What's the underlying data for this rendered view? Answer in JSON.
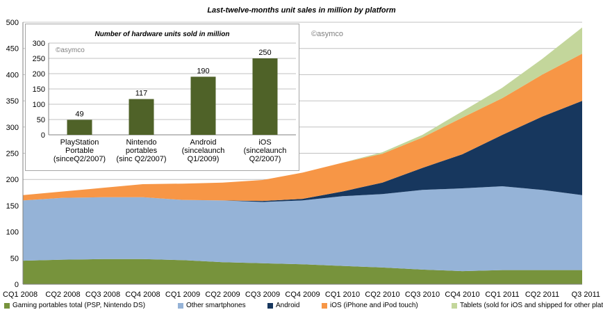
{
  "title": "Last-twelve-months unit sales in million by platform",
  "watermark": "©asymco",
  "colors": {
    "Gaming portables total (PSP, Nintendo DS)": "#77933c",
    "Other smartphones": "#95b3d7",
    "Android": "#17375e",
    "iOS (iPhone and iPod touch)": "#f79646",
    "Tablets (sold for iOS and shipped for other platforms)": "#c3d69b",
    "inset_bar": "#4f6228",
    "grid": "#c0c0c0"
  },
  "chart_data": [
    {
      "type": "area",
      "stacked": true,
      "title": "Last-twelve-months unit sales in million by platform",
      "categories": [
        "CQ1 2008",
        "CQ2 2008",
        "CQ3 2008",
        "CQ4 2008",
        "CQ1 2009",
        "CQ2 2009",
        "CQ3 2009",
        "CQ4 2009",
        "CQ1 2010",
        "CQ2 2010",
        "CQ3 2010",
        "CQ4 2010",
        "CQ1 2011",
        "CQ2 2011",
        "Q3 2011"
      ],
      "ylim": [
        0,
        500
      ],
      "yticks": [
        0,
        50,
        100,
        150,
        200,
        250,
        300,
        350,
        400,
        450,
        500
      ],
      "grid": true,
      "legend_position": "bottom",
      "series": [
        {
          "name": "Gaming portables total (PSP, Nintendo DS)",
          "values": [
            45,
            47,
            48,
            48,
            46,
            42,
            40,
            38,
            35,
            32,
            28,
            25,
            27,
            27,
            27
          ]
        },
        {
          "name": "Other smartphones",
          "values": [
            115,
            118,
            118,
            118,
            115,
            118,
            117,
            122,
            133,
            140,
            152,
            158,
            160,
            153,
            143
          ]
        },
        {
          "name": "Android",
          "values": [
            0,
            0,
            0,
            0,
            0,
            0,
            2,
            3,
            9,
            22,
            42,
            65,
            98,
            140,
            180
          ]
        },
        {
          "name": "iOS (iPhone and iPod touch)",
          "values": [
            10,
            12,
            18,
            25,
            31,
            34,
            40,
            50,
            55,
            55,
            58,
            70,
            70,
            80,
            90
          ]
        },
        {
          "name": "Tablets (sold for iOS and shipped for other platforms)",
          "values": [
            0,
            0,
            0,
            0,
            0,
            0,
            0,
            0,
            0,
            3,
            5,
            12,
            20,
            30,
            50
          ]
        }
      ]
    },
    {
      "type": "bar",
      "title": "Number of hardware units sold in million",
      "categories": [
        "PlayStation Portable (since Q2/2007)",
        "Nintendo portables (since Q2/2007)",
        "Android (since launch Q1/2009)",
        "iOS (since launch Q2/2007)"
      ],
      "category_lines": [
        [
          "PlayStation",
          "Portable",
          "(sinceQ2/2007)"
        ],
        [
          "Nintendo",
          "portables",
          "(sinc Q2/2007)"
        ],
        [
          "Android",
          "(sincelaunch",
          "Q1/2009)"
        ],
        [
          "iOS",
          "(sincelaunch",
          "Q2/2007)"
        ]
      ],
      "values": [
        49,
        117,
        190,
        250
      ],
      "data_labels": [
        "49",
        "117",
        "190",
        "250"
      ],
      "ylim": [
        0,
        300
      ],
      "yticks": [
        0,
        50,
        100,
        150,
        200,
        250,
        300
      ],
      "grid": true
    }
  ]
}
